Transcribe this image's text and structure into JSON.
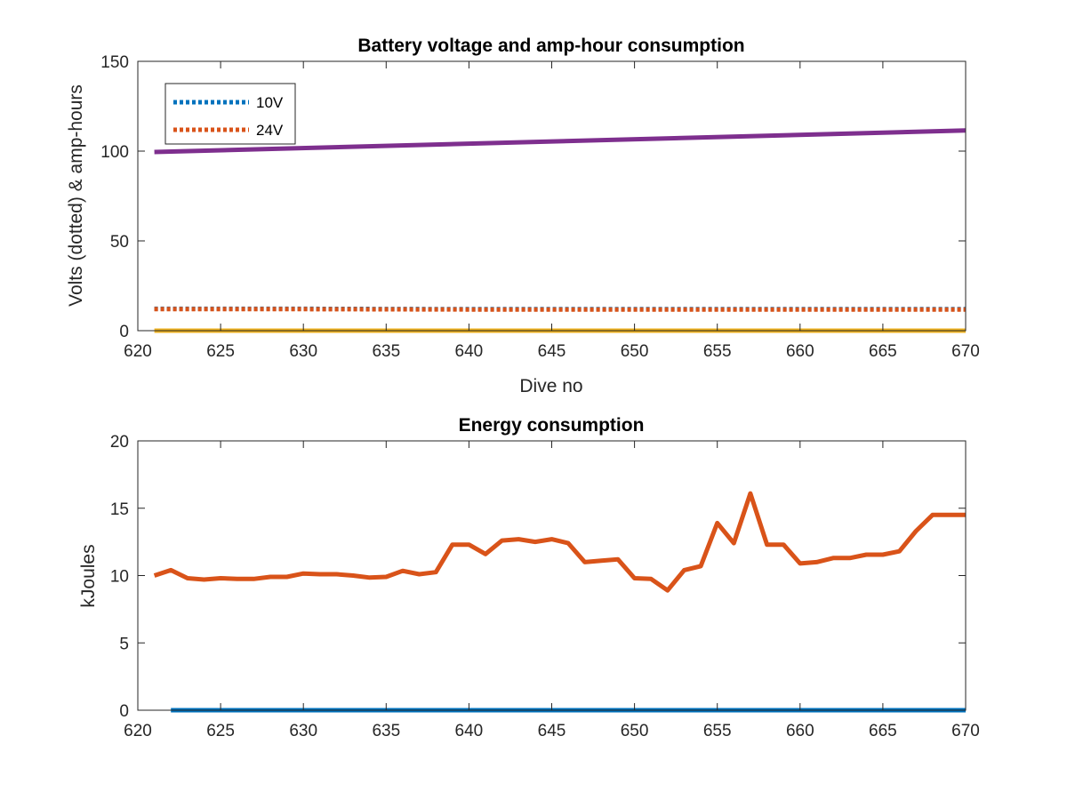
{
  "colors": {
    "blue": "#0072BD",
    "orange": "#D95319",
    "yellow": "#EDB120",
    "purple": "#7E2F8E",
    "axis": "#262626"
  },
  "chart_data": [
    {
      "type": "line",
      "title": "Battery voltage and amp-hour consumption",
      "xlabel": "Dive no",
      "ylabel": "Volts (dotted) & amp-hours",
      "xlim": [
        620,
        670
      ],
      "ylim": [
        0,
        150
      ],
      "xticks": [
        620,
        625,
        630,
        635,
        640,
        645,
        650,
        655,
        660,
        665,
        670
      ],
      "yticks": [
        0,
        50,
        100,
        150
      ],
      "x_tick_labels": [
        "620",
        "625",
        "630",
        "635",
        "640",
        "645",
        "650",
        "655",
        "660",
        "665",
        "670"
      ],
      "y_tick_labels": [
        "0",
        "50",
        "100",
        "150"
      ],
      "grid": false,
      "legend": {
        "location": "top-left"
      },
      "series": [
        {
          "name": "10V",
          "style": "dotted",
          "color": "blue",
          "x": [
            621,
            625,
            630,
            635,
            640,
            645,
            650,
            655,
            660,
            665,
            670
          ],
          "y": [
            12.2,
            12.2,
            12.2,
            12.1,
            12.0,
            12.0,
            12.0,
            12.0,
            12.0,
            12.0,
            12.0
          ]
        },
        {
          "name": "24V",
          "style": "dotted",
          "color": "orange",
          "x": [
            621,
            625,
            630,
            635,
            640,
            645,
            650,
            655,
            660,
            665,
            670
          ],
          "y": [
            12.0,
            12.0,
            12.0,
            11.9,
            11.8,
            11.8,
            11.8,
            11.8,
            11.8,
            11.8,
            11.8
          ]
        },
        {
          "style": "solid",
          "color": "yellow",
          "x": [
            621,
            670
          ],
          "y": [
            0,
            0
          ]
        },
        {
          "style": "solid",
          "color": "purple",
          "x": [
            621,
            670
          ],
          "y": [
            99.5,
            111.5
          ]
        }
      ]
    },
    {
      "type": "line",
      "title": "Energy consumption",
      "xlabel": "",
      "ylabel": "kJoules",
      "xlim": [
        620,
        670
      ],
      "ylim": [
        0,
        20
      ],
      "xticks": [
        620,
        625,
        630,
        635,
        640,
        645,
        650,
        655,
        660,
        665,
        670
      ],
      "yticks": [
        0,
        5,
        10,
        15,
        20
      ],
      "x_tick_labels": [
        "620",
        "625",
        "630",
        "635",
        "640",
        "645",
        "650",
        "655",
        "660",
        "665",
        "670"
      ],
      "y_tick_labels": [
        "0",
        "5",
        "10",
        "15",
        "20"
      ],
      "grid": false,
      "series": [
        {
          "style": "solid",
          "color": "blue",
          "x": [
            622,
            670
          ],
          "y": [
            0,
            0
          ]
        },
        {
          "style": "solid",
          "color": "orange",
          "x": [
            621,
            622,
            623,
            624,
            625,
            626,
            627,
            628,
            629,
            630,
            631,
            632,
            633,
            634,
            635,
            636,
            637,
            638,
            639,
            640,
            641,
            642,
            643,
            644,
            645,
            646,
            647,
            648,
            649,
            650,
            651,
            652,
            653,
            654,
            655,
            656,
            657,
            658,
            659,
            660,
            661,
            662,
            663,
            664,
            665,
            666,
            667,
            668,
            669,
            670
          ],
          "y": [
            10.0,
            10.4,
            9.8,
            9.7,
            9.8,
            9.75,
            9.75,
            9.9,
            9.9,
            10.15,
            10.1,
            10.1,
            10.0,
            9.85,
            9.9,
            10.35,
            10.1,
            10.25,
            12.3,
            12.3,
            11.6,
            12.6,
            12.7,
            12.5,
            12.7,
            12.4,
            11.0,
            11.1,
            11.2,
            9.8,
            9.75,
            8.9,
            10.4,
            10.7,
            13.9,
            12.4,
            16.1,
            12.3,
            12.3,
            10.9,
            11.0,
            11.3,
            11.3,
            11.55,
            11.55,
            11.8,
            13.3,
            14.5,
            14.5,
            14.5
          ]
        }
      ]
    }
  ]
}
